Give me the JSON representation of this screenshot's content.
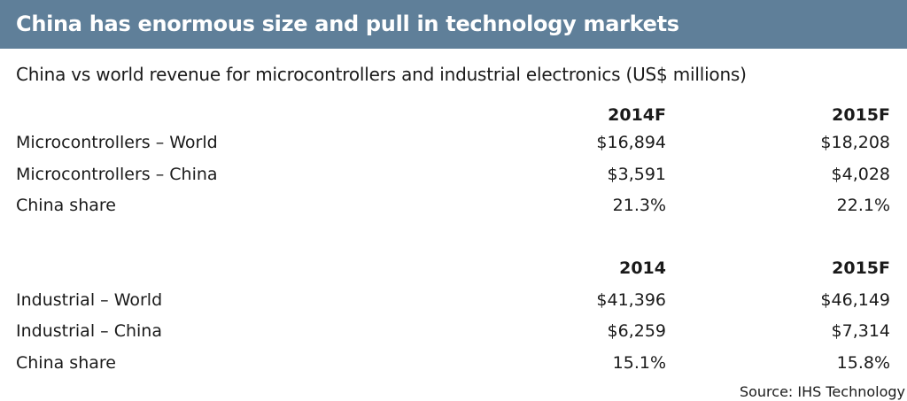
{
  "header": {
    "title": "China has enormous size and pull in technology markets",
    "background": "#5f7f99"
  },
  "subtitle": "China vs world revenue for microcontrollers and industrial electronics (US$ millions)",
  "chart_data": {
    "type": "table",
    "title": "China vs world revenue for microcontrollers and industrial electronics (US$ millions)",
    "tables": [
      {
        "columns": [
          "",
          "2014F",
          "2015F"
        ],
        "rows": [
          [
            "Microcontrollers – World",
            "$16,894",
            "$18,208"
          ],
          [
            "Microcontrollers – China",
            "$3,591",
            "$4,028"
          ],
          [
            "China share",
            "21.3%",
            "22.1%"
          ]
        ]
      },
      {
        "columns": [
          "",
          "2014",
          "2015F"
        ],
        "rows": [
          [
            "Industrial – World",
            "$41,396",
            "$46,149"
          ],
          [
            "Industrial – China",
            "$6,259",
            "$7,314"
          ],
          [
            "China share",
            "15.1%",
            "15.8%"
          ]
        ]
      }
    ]
  },
  "source": "Source: IHS Technology"
}
